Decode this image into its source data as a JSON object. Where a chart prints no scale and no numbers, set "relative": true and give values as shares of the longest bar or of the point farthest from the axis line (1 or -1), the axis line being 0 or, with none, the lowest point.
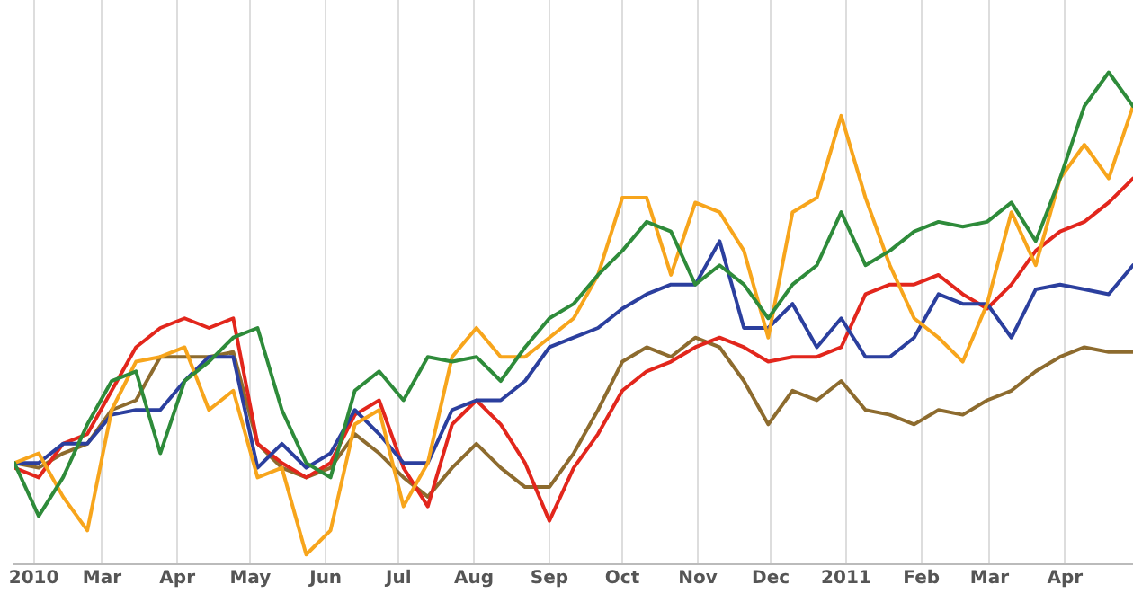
{
  "chart_data": {
    "type": "line",
    "relative": true,
    "grid": "x",
    "legend": false,
    "marker": "none",
    "line_style": "solid",
    "x": [
      "2010-01-24",
      "2010-02-03",
      "2010-02-13",
      "2010-02-23",
      "2010-03-05",
      "2010-03-15",
      "2010-03-25",
      "2010-04-04",
      "2010-04-14",
      "2010-04-24",
      "2010-05-04",
      "2010-05-14",
      "2010-05-24",
      "2010-06-03",
      "2010-06-13",
      "2010-06-23",
      "2010-07-03",
      "2010-07-13",
      "2010-07-23",
      "2010-08-02",
      "2010-08-12",
      "2010-08-22",
      "2010-09-01",
      "2010-09-11",
      "2010-09-21",
      "2010-10-01",
      "2010-10-11",
      "2010-10-21",
      "2010-10-31",
      "2010-11-10",
      "2010-11-20",
      "2010-11-30",
      "2010-12-10",
      "2010-12-20",
      "2010-12-30",
      "2011-01-09",
      "2011-01-19",
      "2011-01-29",
      "2011-02-08",
      "2011-02-18",
      "2011-02-28",
      "2011-03-10",
      "2011-03-20",
      "2011-03-30",
      "2011-04-09",
      "2011-04-19",
      "2011-04-29"
    ],
    "xlim": [
      "2010-01-24",
      "2011-04-29"
    ],
    "xticks": [
      {
        "value": "2010-02-01",
        "label": "2010"
      },
      {
        "value": "2010-03-01",
        "label": "Mar"
      },
      {
        "value": "2010-04-01",
        "label": "Apr"
      },
      {
        "value": "2010-05-01",
        "label": "May"
      },
      {
        "value": "2010-06-01",
        "label": "Jun"
      },
      {
        "value": "2010-07-01",
        "label": "Jul"
      },
      {
        "value": "2010-08-01",
        "label": "Aug"
      },
      {
        "value": "2010-09-01",
        "label": "Sep"
      },
      {
        "value": "2010-10-01",
        "label": "Oct"
      },
      {
        "value": "2010-11-01",
        "label": "Nov"
      },
      {
        "value": "2010-12-01",
        "label": "Dec"
      },
      {
        "value": "2011-01-01",
        "label": "2011"
      },
      {
        "value": "2011-02-01",
        "label": "Feb"
      },
      {
        "value": "2011-03-01",
        "label": "Mar"
      },
      {
        "value": "2011-04-01",
        "label": "Apr"
      }
    ],
    "series": [
      {
        "color": "#2e8b3a",
        "values": [
          0.19,
          0.08,
          0.16,
          0.27,
          0.36,
          0.38,
          0.21,
          0.36,
          0.4,
          0.45,
          0.47,
          0.3,
          0.19,
          0.16,
          0.34,
          0.38,
          0.32,
          0.41,
          0.4,
          0.41,
          0.36,
          0.43,
          0.49,
          0.52,
          0.58,
          0.63,
          0.69,
          0.67,
          0.56,
          0.6,
          0.56,
          0.49,
          0.56,
          0.6,
          0.71,
          0.6,
          0.63,
          0.67,
          0.69,
          0.68,
          0.69,
          0.73,
          0.65,
          0.78,
          0.93,
          1.0,
          0.93
        ]
      },
      {
        "color": "#f7a51c",
        "values": [
          0.19,
          0.21,
          0.12,
          0.05,
          0.3,
          0.4,
          0.41,
          0.43,
          0.3,
          0.34,
          0.16,
          0.18,
          0,
          0.05,
          0.27,
          0.3,
          0.1,
          0.19,
          0.41,
          0.47,
          0.41,
          0.41,
          0.45,
          0.49,
          0.58,
          0.74,
          0.74,
          0.58,
          0.73,
          0.71,
          0.63,
          0.45,
          0.71,
          0.74,
          0.91,
          0.74,
          0.6,
          0.49,
          0.45,
          0.4,
          0.52,
          0.71,
          0.6,
          0.78,
          0.85,
          0.78,
          0.93
        ]
      },
      {
        "color": "#2b3f9e",
        "values": [
          0.19,
          0.19,
          0.23,
          0.23,
          0.29,
          0.3,
          0.3,
          0.36,
          0.41,
          0.41,
          0.18,
          0.23,
          0.18,
          0.21,
          0.3,
          0.25,
          0.19,
          0.19,
          0.3,
          0.32,
          0.32,
          0.36,
          0.43,
          0.45,
          0.47,
          0.51,
          0.54,
          0.56,
          0.56,
          0.65,
          0.47,
          0.47,
          0.52,
          0.43,
          0.49,
          0.41,
          0.41,
          0.45,
          0.54,
          0.52,
          0.52,
          0.45,
          0.55,
          0.56,
          0.55,
          0.54,
          0.6
        ]
      },
      {
        "color": "#e2261c",
        "values": [
          0.18,
          0.16,
          0.23,
          0.25,
          0.34,
          0.43,
          0.47,
          0.49,
          0.47,
          0.49,
          0.23,
          0.19,
          0.16,
          0.19,
          0.29,
          0.32,
          0.18,
          0.1,
          0.27,
          0.32,
          0.27,
          0.19,
          0.07,
          0.18,
          0.25,
          0.34,
          0.38,
          0.4,
          0.43,
          0.45,
          0.43,
          0.4,
          0.41,
          0.41,
          0.43,
          0.54,
          0.56,
          0.56,
          0.58,
          0.54,
          0.51,
          0.56,
          0.63,
          0.67,
          0.69,
          0.73,
          0.78
        ]
      },
      {
        "color": "#8d6b2e",
        "values": [
          0.19,
          0.18,
          0.21,
          0.23,
          0.3,
          0.32,
          0.41,
          0.41,
          0.41,
          0.42,
          0.23,
          0.18,
          0.16,
          0.18,
          0.25,
          0.21,
          0.16,
          0.12,
          0.18,
          0.23,
          0.18,
          0.14,
          0.14,
          0.21,
          0.3,
          0.4,
          0.43,
          0.41,
          0.45,
          0.43,
          0.36,
          0.27,
          0.34,
          0.32,
          0.36,
          0.3,
          0.29,
          0.27,
          0.3,
          0.29,
          0.32,
          0.34,
          0.38,
          0.41,
          0.43,
          0.42,
          0.42
        ]
      }
    ]
  }
}
